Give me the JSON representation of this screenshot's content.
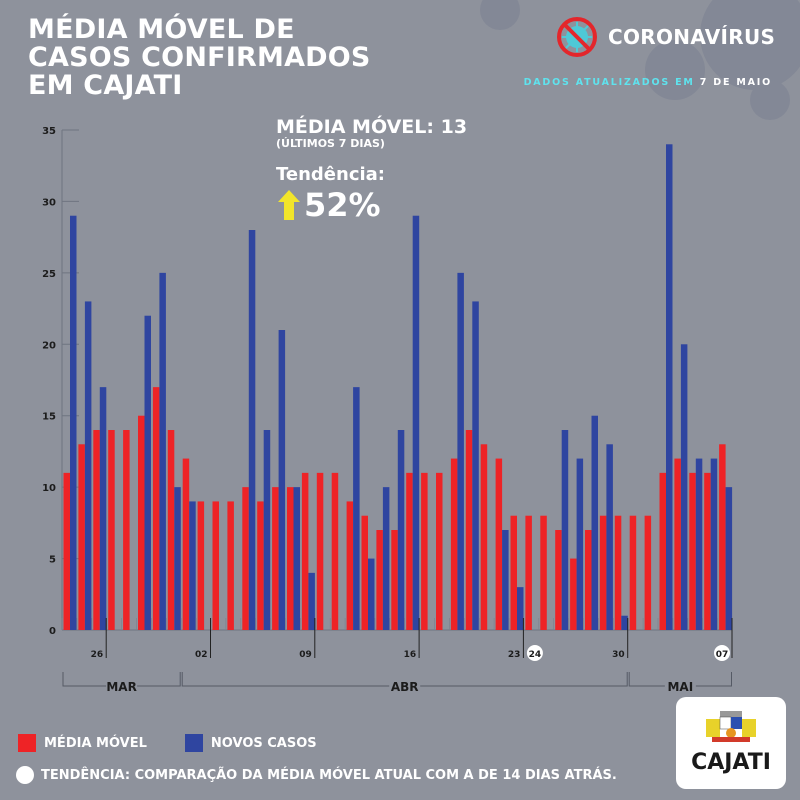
{
  "header": {
    "title_lines": [
      "MÉDIA MÓVEL DE",
      "CASOS CONFIRMADOS",
      "EM CAJATI"
    ],
    "brand": "CORONAVÍRUS",
    "updated_prefix": "DADOS ATUALIZADOS EM",
    "updated_date": "7 DE MAIO"
  },
  "summary": {
    "media_movel_label": "MÉDIA MÓVEL: 13",
    "media_movel_sub": "(ÚLTIMOS 7 DIAS)",
    "tendencia_label": "Tendência:",
    "tendencia_value": "52%",
    "tendencia_direction": "up"
  },
  "legend": {
    "media_movel": "MÉDIA MÓVEL",
    "novos_casos": "NOVOS CASOS",
    "note": "TENDÊNCIA: COMPARAÇÃO DA MÉDIA MÓVEL ATUAL COM A DE 14 DIAS ATRÁS."
  },
  "logo_text": "CAJATI",
  "colors": {
    "background": "#8e929c",
    "media_movel": "#ee2326",
    "novos_casos": "#2f45a0",
    "accent_cyan": "#5fe3ee",
    "arrow": "#f2e52a"
  },
  "chart_data": {
    "type": "bar",
    "title": "Média móvel de casos confirmados em Cajati",
    "xlabel": "",
    "ylabel": "",
    "ylim": [
      0,
      35
    ],
    "yticks": [
      0,
      5,
      10,
      15,
      20,
      25,
      30,
      35
    ],
    "grid": false,
    "x": [
      "24/03",
      "25/03",
      "26/03",
      "27/03",
      "28/03",
      "29/03",
      "30/03",
      "31/03",
      "01/04",
      "02/04",
      "03/04",
      "04/04",
      "05/04",
      "06/04",
      "07/04",
      "08/04",
      "09/04",
      "10/04",
      "11/04",
      "12/04",
      "13/04",
      "14/04",
      "15/04",
      "16/04",
      "17/04",
      "18/04",
      "19/04",
      "20/04",
      "21/04",
      "22/04",
      "23/04",
      "24/04",
      "25/04",
      "26/04",
      "27/04",
      "28/04",
      "29/04",
      "30/04",
      "01/05",
      "02/05",
      "03/05",
      "04/05",
      "05/05",
      "06/05",
      "07/05"
    ],
    "series": [
      {
        "name": "MÉDIA MÓVEL",
        "color": "#ee2326",
        "values": [
          11,
          13,
          14,
          14,
          14,
          15,
          17,
          14,
          12,
          9,
          9,
          9,
          10,
          9,
          10,
          10,
          11,
          11,
          11,
          9,
          8,
          7,
          7,
          11,
          11,
          11,
          12,
          14,
          13,
          12,
          8,
          8,
          8,
          7,
          5,
          7,
          8,
          8,
          8,
          8,
          11,
          12,
          11,
          11,
          13
        ]
      },
      {
        "name": "NOVOS CASOS",
        "color": "#2f45a0",
        "values": [
          29,
          23,
          17,
          0,
          0,
          22,
          25,
          10,
          9,
          0,
          0,
          0,
          28,
          14,
          21,
          10,
          4,
          0,
          0,
          17,
          5,
          10,
          14,
          29,
          0,
          0,
          25,
          23,
          0,
          7,
          3,
          0,
          0,
          14,
          12,
          15,
          13,
          1,
          0,
          0,
          34,
          20,
          12,
          12,
          10
        ]
      }
    ],
    "date_ticks": [
      {
        "label": "26",
        "index": 2,
        "highlight": false
      },
      {
        "label": "02",
        "index": 9,
        "highlight": false
      },
      {
        "label": "09",
        "index": 16,
        "highlight": false
      },
      {
        "label": "16",
        "index": 23,
        "highlight": false
      },
      {
        "label": "23",
        "index": 30,
        "highlight": false
      },
      {
        "label": "24",
        "index": 31,
        "highlight": true
      },
      {
        "label": "30",
        "index": 37,
        "highlight": false
      },
      {
        "label": "07",
        "index": 44,
        "highlight": true
      }
    ],
    "months": [
      {
        "label": "MAR",
        "start": 0,
        "end": 7
      },
      {
        "label": "ABR",
        "start": 8,
        "end": 37
      },
      {
        "label": "MAI",
        "start": 38,
        "end": 44
      }
    ],
    "legend_position": "bottom-left"
  }
}
